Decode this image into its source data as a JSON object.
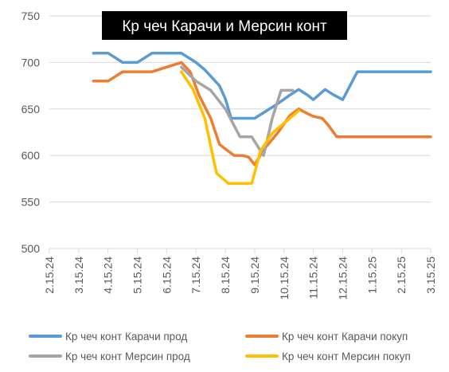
{
  "chart_data": {
    "type": "line",
    "title": "Кр чеч Карачи  и Мерсин конт",
    "xlabel": "",
    "ylabel": "",
    "ylim": [
      500,
      750
    ],
    "yticks": [
      500,
      550,
      600,
      650,
      700,
      750
    ],
    "x_tick_labels": [
      "2.15.24",
      "3.15.24",
      "4.15.24",
      "5.15.24",
      "6.15.24",
      "7.15.24",
      "8.15.24",
      "9.15.24",
      "10.15.24",
      "11.15.24",
      "12.15.24",
      "1.15.25",
      "2.15.25",
      "3.15.25"
    ],
    "grid": "horizontal",
    "legend_position": "bottom",
    "series": [
      {
        "name": "Кр чеч  конт Карачи прод",
        "color": "#5B9BD5",
        "points": [
          [
            1.5,
            710
          ],
          [
            2,
            710
          ],
          [
            2.5,
            700
          ],
          [
            3,
            700
          ],
          [
            3.5,
            710
          ],
          [
            4,
            710
          ],
          [
            4.5,
            710
          ],
          [
            5,
            700
          ],
          [
            5.3,
            692
          ],
          [
            5.8,
            675
          ],
          [
            6,
            661
          ],
          [
            6.2,
            640
          ],
          [
            6.5,
            640
          ],
          [
            6.8,
            640
          ],
          [
            7,
            640
          ],
          [
            7.3,
            646
          ],
          [
            7.8,
            656
          ],
          [
            8.2,
            665
          ],
          [
            8.5,
            671
          ],
          [
            8.8,
            665
          ],
          [
            9,
            660
          ],
          [
            9.4,
            671
          ],
          [
            9.7,
            665
          ],
          [
            10,
            660
          ],
          [
            10.5,
            690
          ],
          [
            11,
            690
          ],
          [
            11.5,
            690
          ],
          [
            12,
            690
          ],
          [
            12.5,
            690
          ],
          [
            13,
            690
          ]
        ]
      },
      {
        "name": "Кр чеч  конт Карачи покуп",
        "color": "#ED7D31",
        "points": [
          [
            1.5,
            680
          ],
          [
            2,
            680
          ],
          [
            2.5,
            690
          ],
          [
            3,
            690
          ],
          [
            3.5,
            690
          ],
          [
            4,
            695
          ],
          [
            4.5,
            700
          ],
          [
            4.8,
            690
          ],
          [
            5.1,
            665
          ],
          [
            5.5,
            640
          ],
          [
            5.8,
            612
          ],
          [
            6,
            607
          ],
          [
            6.3,
            600
          ],
          [
            6.6,
            600
          ],
          [
            6.8,
            598
          ],
          [
            7,
            590
          ],
          [
            7.3,
            606
          ],
          [
            7.8,
            625
          ],
          [
            8.2,
            643
          ],
          [
            8.5,
            650
          ],
          [
            8.8,
            645
          ],
          [
            9,
            642
          ],
          [
            9.3,
            640
          ],
          [
            9.5,
            633
          ],
          [
            9.8,
            620
          ],
          [
            10,
            620
          ],
          [
            10.5,
            620
          ],
          [
            11,
            620
          ],
          [
            11.5,
            620
          ],
          [
            12,
            620
          ],
          [
            12.5,
            620
          ],
          [
            13,
            620
          ]
        ]
      },
      {
        "name": "Кр чеч  конт Мерсин прод",
        "color": "#A5A5A5",
        "points": [
          [
            4.5,
            695
          ],
          [
            5,
            680
          ],
          [
            5.5,
            670
          ],
          [
            6,
            650
          ],
          [
            6.5,
            620
          ],
          [
            6.9,
            620
          ],
          [
            7.3,
            600
          ],
          [
            7.6,
            640
          ],
          [
            7.9,
            670
          ],
          [
            8.3,
            670
          ]
        ]
      },
      {
        "name": "Кр чеч  конт Мерсин покуп",
        "color": "#FFC000",
        "points": [
          [
            4.5,
            690
          ],
          [
            4.9,
            671
          ],
          [
            5.3,
            640
          ],
          [
            5.7,
            581
          ],
          [
            6.1,
            570
          ],
          [
            6.5,
            570
          ],
          [
            6.9,
            570
          ],
          [
            7.2,
            605
          ],
          [
            7.6,
            624
          ],
          [
            8.2,
            640
          ],
          [
            8.5,
            648
          ]
        ]
      }
    ]
  }
}
